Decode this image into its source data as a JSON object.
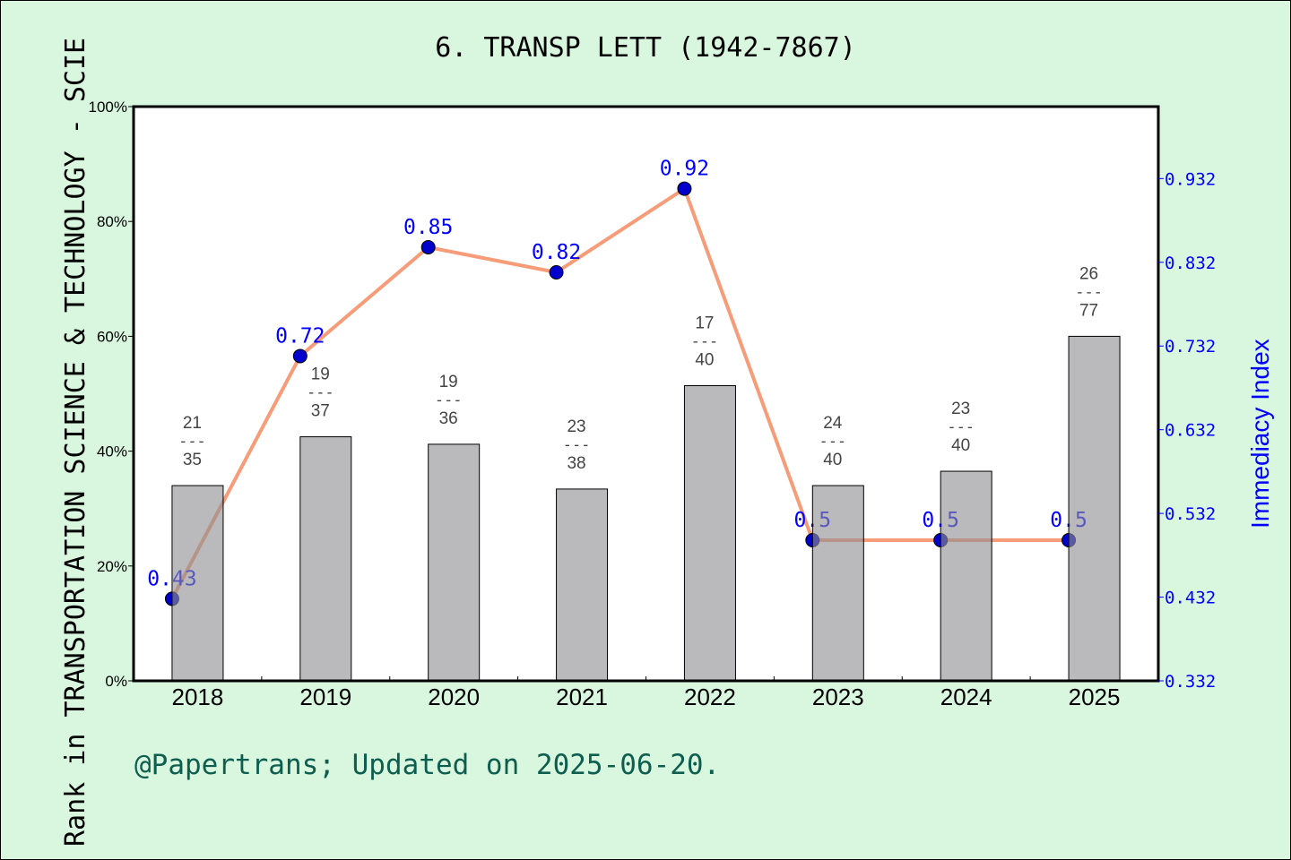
{
  "chart_data": {
    "type": "bar+line",
    "title": "6. TRANSP LETT (1942-7867)",
    "ylabel_left": "Rank in TRANSPORTATION SCIENCE & TECHNOLOGY - SCIE",
    "ylabel_right": "Immediacy Index",
    "categories": [
      "2018",
      "2019",
      "2020",
      "2021",
      "2022",
      "2023",
      "2024",
      "2025"
    ],
    "left_axis": {
      "ylim": [
        0,
        100
      ],
      "ticks": [
        "0%",
        "20%",
        "40%",
        "60%",
        "80%",
        "100%"
      ]
    },
    "right_axis": {
      "ylim": [
        0.332,
        1.018
      ],
      "ticks": [
        "0.332",
        "0.432",
        "0.532",
        "0.632",
        "0.732",
        "0.832",
        "0.932"
      ]
    },
    "bars": {
      "values_percent": [
        34,
        42.5,
        41.2,
        33.4,
        51.4,
        34,
        36.5,
        60
      ],
      "labels": [
        {
          "rank": "21",
          "total": "35"
        },
        {
          "rank": "19",
          "total": "37"
        },
        {
          "rank": "19",
          "total": "36"
        },
        {
          "rank": "23",
          "total": "38"
        },
        {
          "rank": "17",
          "total": "40"
        },
        {
          "rank": "24",
          "total": "40"
        },
        {
          "rank": "23",
          "total": "40"
        },
        {
          "rank": "26",
          "total": "77"
        }
      ],
      "color": "#b8b9bb"
    },
    "line": {
      "values": [
        0.43,
        0.72,
        0.85,
        0.82,
        0.92,
        0.5,
        0.5,
        0.5
      ],
      "labels": [
        "0.43",
        "0.72",
        "0.85",
        "0.82",
        "0.92",
        "0.5",
        "0.5",
        "0.5"
      ],
      "line_color": "#f79c78",
      "marker_color": "#0000cc",
      "label_color": "#0000ff"
    },
    "grid": false
  },
  "footer": "@Papertrans; Updated on 2025-06-20."
}
